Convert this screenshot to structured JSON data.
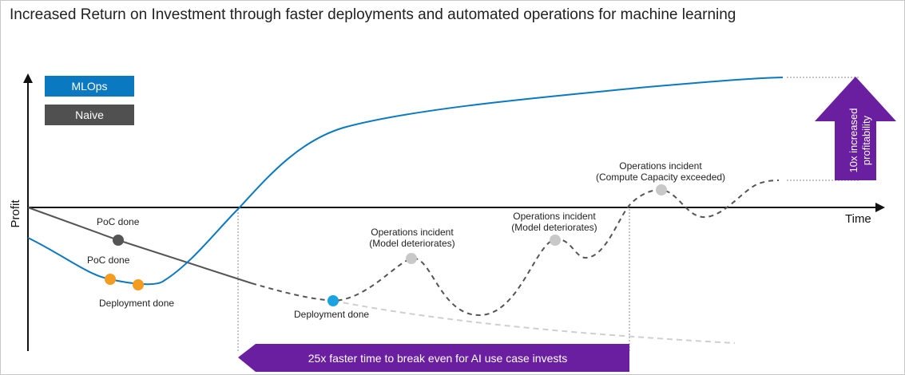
{
  "title": "Increased Return on Investment through faster deployments and automated operations for machine learning",
  "axes": {
    "y_label": "Profit",
    "x_label": "Time"
  },
  "legend": [
    {
      "label": "MLOps",
      "color": "#0a79c2"
    },
    {
      "label": "Naive",
      "color": "#505050"
    }
  ],
  "annotations": {
    "poc_naive": "PoC done",
    "poc_mlops": "PoC done",
    "deploy_mlops": "Deployment done",
    "deploy_naive": "Deployment done",
    "incident1_line1": "Operations incident",
    "incident1_line2": "(Model deteriorates)",
    "incident2_line1": "Operations incident",
    "incident2_line2": "(Model deteriorates)",
    "incident3_line1": "Operations incident",
    "incident3_line2": "(Compute Capacity exceeded)"
  },
  "callouts": {
    "profitability_line1": "10x increased",
    "profitability_line2": "profitability",
    "break_even": "25x faster time to break even for AI use case invests"
  },
  "colors": {
    "mlops": "#0a79c2",
    "naive": "#555555",
    "orange": "#f39c1f",
    "gray_dot": "#c8c8c8",
    "purple": "#6a1ea0",
    "deploy_dot": "#1aa3e0"
  }
}
